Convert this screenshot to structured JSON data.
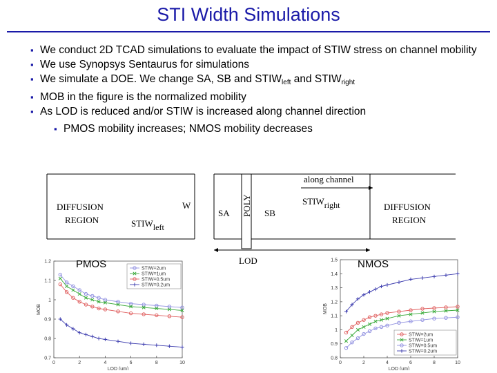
{
  "slide": {
    "title": "STI Width Simulations",
    "bullets": [
      {
        "text": "We conduct 2D TCAD simulations to evaluate the impact of STIW stress on channel mobility"
      },
      {
        "text": "We use Synopsys Sentaurus for simulations"
      },
      {
        "pre": "We simulate a DOE. We change SA, SB and STIW",
        "sub1": "left",
        "mid": " and STIW",
        "sub2": "right"
      },
      {
        "text": "MOB in the figure is the normalized mobility"
      },
      {
        "text": "As LOD is reduced and/or STIW is increased along channel direction"
      },
      {
        "text": "PMOS mobility increases; NMOS mobility decreases"
      }
    ]
  },
  "diagram": {
    "left_region": [
      "DIFFUSION",
      "REGION"
    ],
    "right_region": [
      "DIFFUSION",
      "REGION"
    ],
    "w": "W",
    "sa": "SA",
    "poly": "POLY",
    "sb": "SB",
    "stiw_left": "STIW",
    "stiw_left_sub": "left",
    "stiw_right": "STIW",
    "stiw_right_sub": "right",
    "along_channel": "along channel",
    "lod": "LOD"
  },
  "charts": {
    "pmos_tag": "PMOS",
    "nmos_tag": "NMOS"
  },
  "chart_data": [
    {
      "type": "line",
      "xlabel": "LOD (um)",
      "ylabel": "MOB",
      "xlim": [
        0,
        10
      ],
      "ylim": [
        0.7,
        1.2
      ],
      "xticks": [
        "0",
        "2",
        "4",
        "6",
        "8",
        "10"
      ],
      "yticks": [
        "0.7",
        "0.8",
        "0.9",
        "1",
        "1.1",
        "1.2"
      ],
      "x": [
        0.5,
        1,
        1.5,
        2,
        2.5,
        3,
        3.5,
        4,
        5,
        6,
        7,
        8,
        9,
        10
      ],
      "legend_position": "top-right",
      "series": [
        {
          "name": "STIW=2um",
          "color": "#9090e0",
          "marker": "o",
          "values": [
            1.13,
            1.09,
            1.07,
            1.05,
            1.03,
            1.02,
            1.01,
            1.0,
            0.99,
            0.98,
            0.975,
            0.97,
            0.965,
            0.96
          ]
        },
        {
          "name": "STIW=1um",
          "color": "#3aaa3a",
          "marker": "x",
          "values": [
            1.11,
            1.07,
            1.05,
            1.03,
            1.01,
            1.0,
            0.99,
            0.985,
            0.975,
            0.965,
            0.96,
            0.955,
            0.95,
            0.945
          ]
        },
        {
          "name": "STIW=0.5um",
          "color": "#e06060",
          "marker": "o",
          "values": [
            1.08,
            1.04,
            1.01,
            0.99,
            0.975,
            0.965,
            0.955,
            0.95,
            0.94,
            0.93,
            0.925,
            0.92,
            0.915,
            0.91
          ]
        },
        {
          "name": "STIW=0.2um",
          "color": "#4040b0",
          "marker": "+",
          "values": [
            0.9,
            0.87,
            0.85,
            0.83,
            0.82,
            0.81,
            0.8,
            0.795,
            0.785,
            0.775,
            0.77,
            0.765,
            0.76,
            0.755
          ]
        }
      ]
    },
    {
      "type": "line",
      "xlabel": "LOD (um)",
      "ylabel": "MOB",
      "xlim": [
        0,
        10
      ],
      "ylim": [
        0.8,
        1.5
      ],
      "xticks": [
        "0",
        "2",
        "4",
        "6",
        "8",
        "10"
      ],
      "yticks": [
        "0.8",
        "0.9",
        "1",
        "1.1",
        "1.2",
        "1.3",
        "1.4",
        "1.5"
      ],
      "x": [
        0.5,
        1,
        1.5,
        2,
        2.5,
        3,
        3.5,
        4,
        5,
        6,
        7,
        8,
        9,
        10
      ],
      "legend_position": "bottom-right",
      "series": [
        {
          "name": "STIW=2um",
          "color": "#e06060",
          "marker": "o",
          "values": [
            0.98,
            1.02,
            1.05,
            1.07,
            1.09,
            1.1,
            1.11,
            1.12,
            1.13,
            1.14,
            1.15,
            1.155,
            1.16,
            1.165
          ]
        },
        {
          "name": "STIW=1um",
          "color": "#3aaa3a",
          "marker": "x",
          "values": [
            0.92,
            0.96,
            1.0,
            1.02,
            1.04,
            1.06,
            1.07,
            1.08,
            1.1,
            1.11,
            1.12,
            1.13,
            1.135,
            1.14
          ]
        },
        {
          "name": "STIW=0.5um",
          "color": "#9090e0",
          "marker": "o",
          "values": [
            0.87,
            0.91,
            0.94,
            0.97,
            0.99,
            1.01,
            1.02,
            1.03,
            1.05,
            1.06,
            1.07,
            1.08,
            1.085,
            1.09
          ]
        },
        {
          "name": "STIW=0.2um",
          "color": "#4040b0",
          "marker": "+",
          "values": [
            1.13,
            1.18,
            1.22,
            1.25,
            1.27,
            1.29,
            1.31,
            1.32,
            1.34,
            1.36,
            1.37,
            1.38,
            1.39,
            1.4
          ]
        }
      ]
    }
  ]
}
